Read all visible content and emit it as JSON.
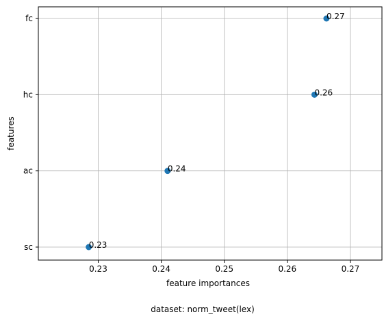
{
  "chart_data": {
    "type": "scatter",
    "xlabel": "feature importances",
    "ylabel": "features",
    "caption": "dataset: norm_tweet(lex)",
    "categories": [
      "sc",
      "ac",
      "hc",
      "fc"
    ],
    "points": [
      {
        "feature": "sc",
        "x": 0.2285,
        "label": "0.23"
      },
      {
        "feature": "ac",
        "x": 0.241,
        "label": "0.24"
      },
      {
        "feature": "hc",
        "x": 0.2643,
        "label": "0.26"
      },
      {
        "feature": "fc",
        "x": 0.2662,
        "label": "0.27"
      }
    ],
    "xlim": [
      0.2205,
      0.275
    ],
    "xticks": [
      0.23,
      0.24,
      0.25,
      0.26,
      0.27
    ],
    "xtick_labels": [
      "0.23",
      "0.24",
      "0.25",
      "0.26",
      "0.27"
    ],
    "grid": true,
    "point_color": "#1f77b4"
  }
}
